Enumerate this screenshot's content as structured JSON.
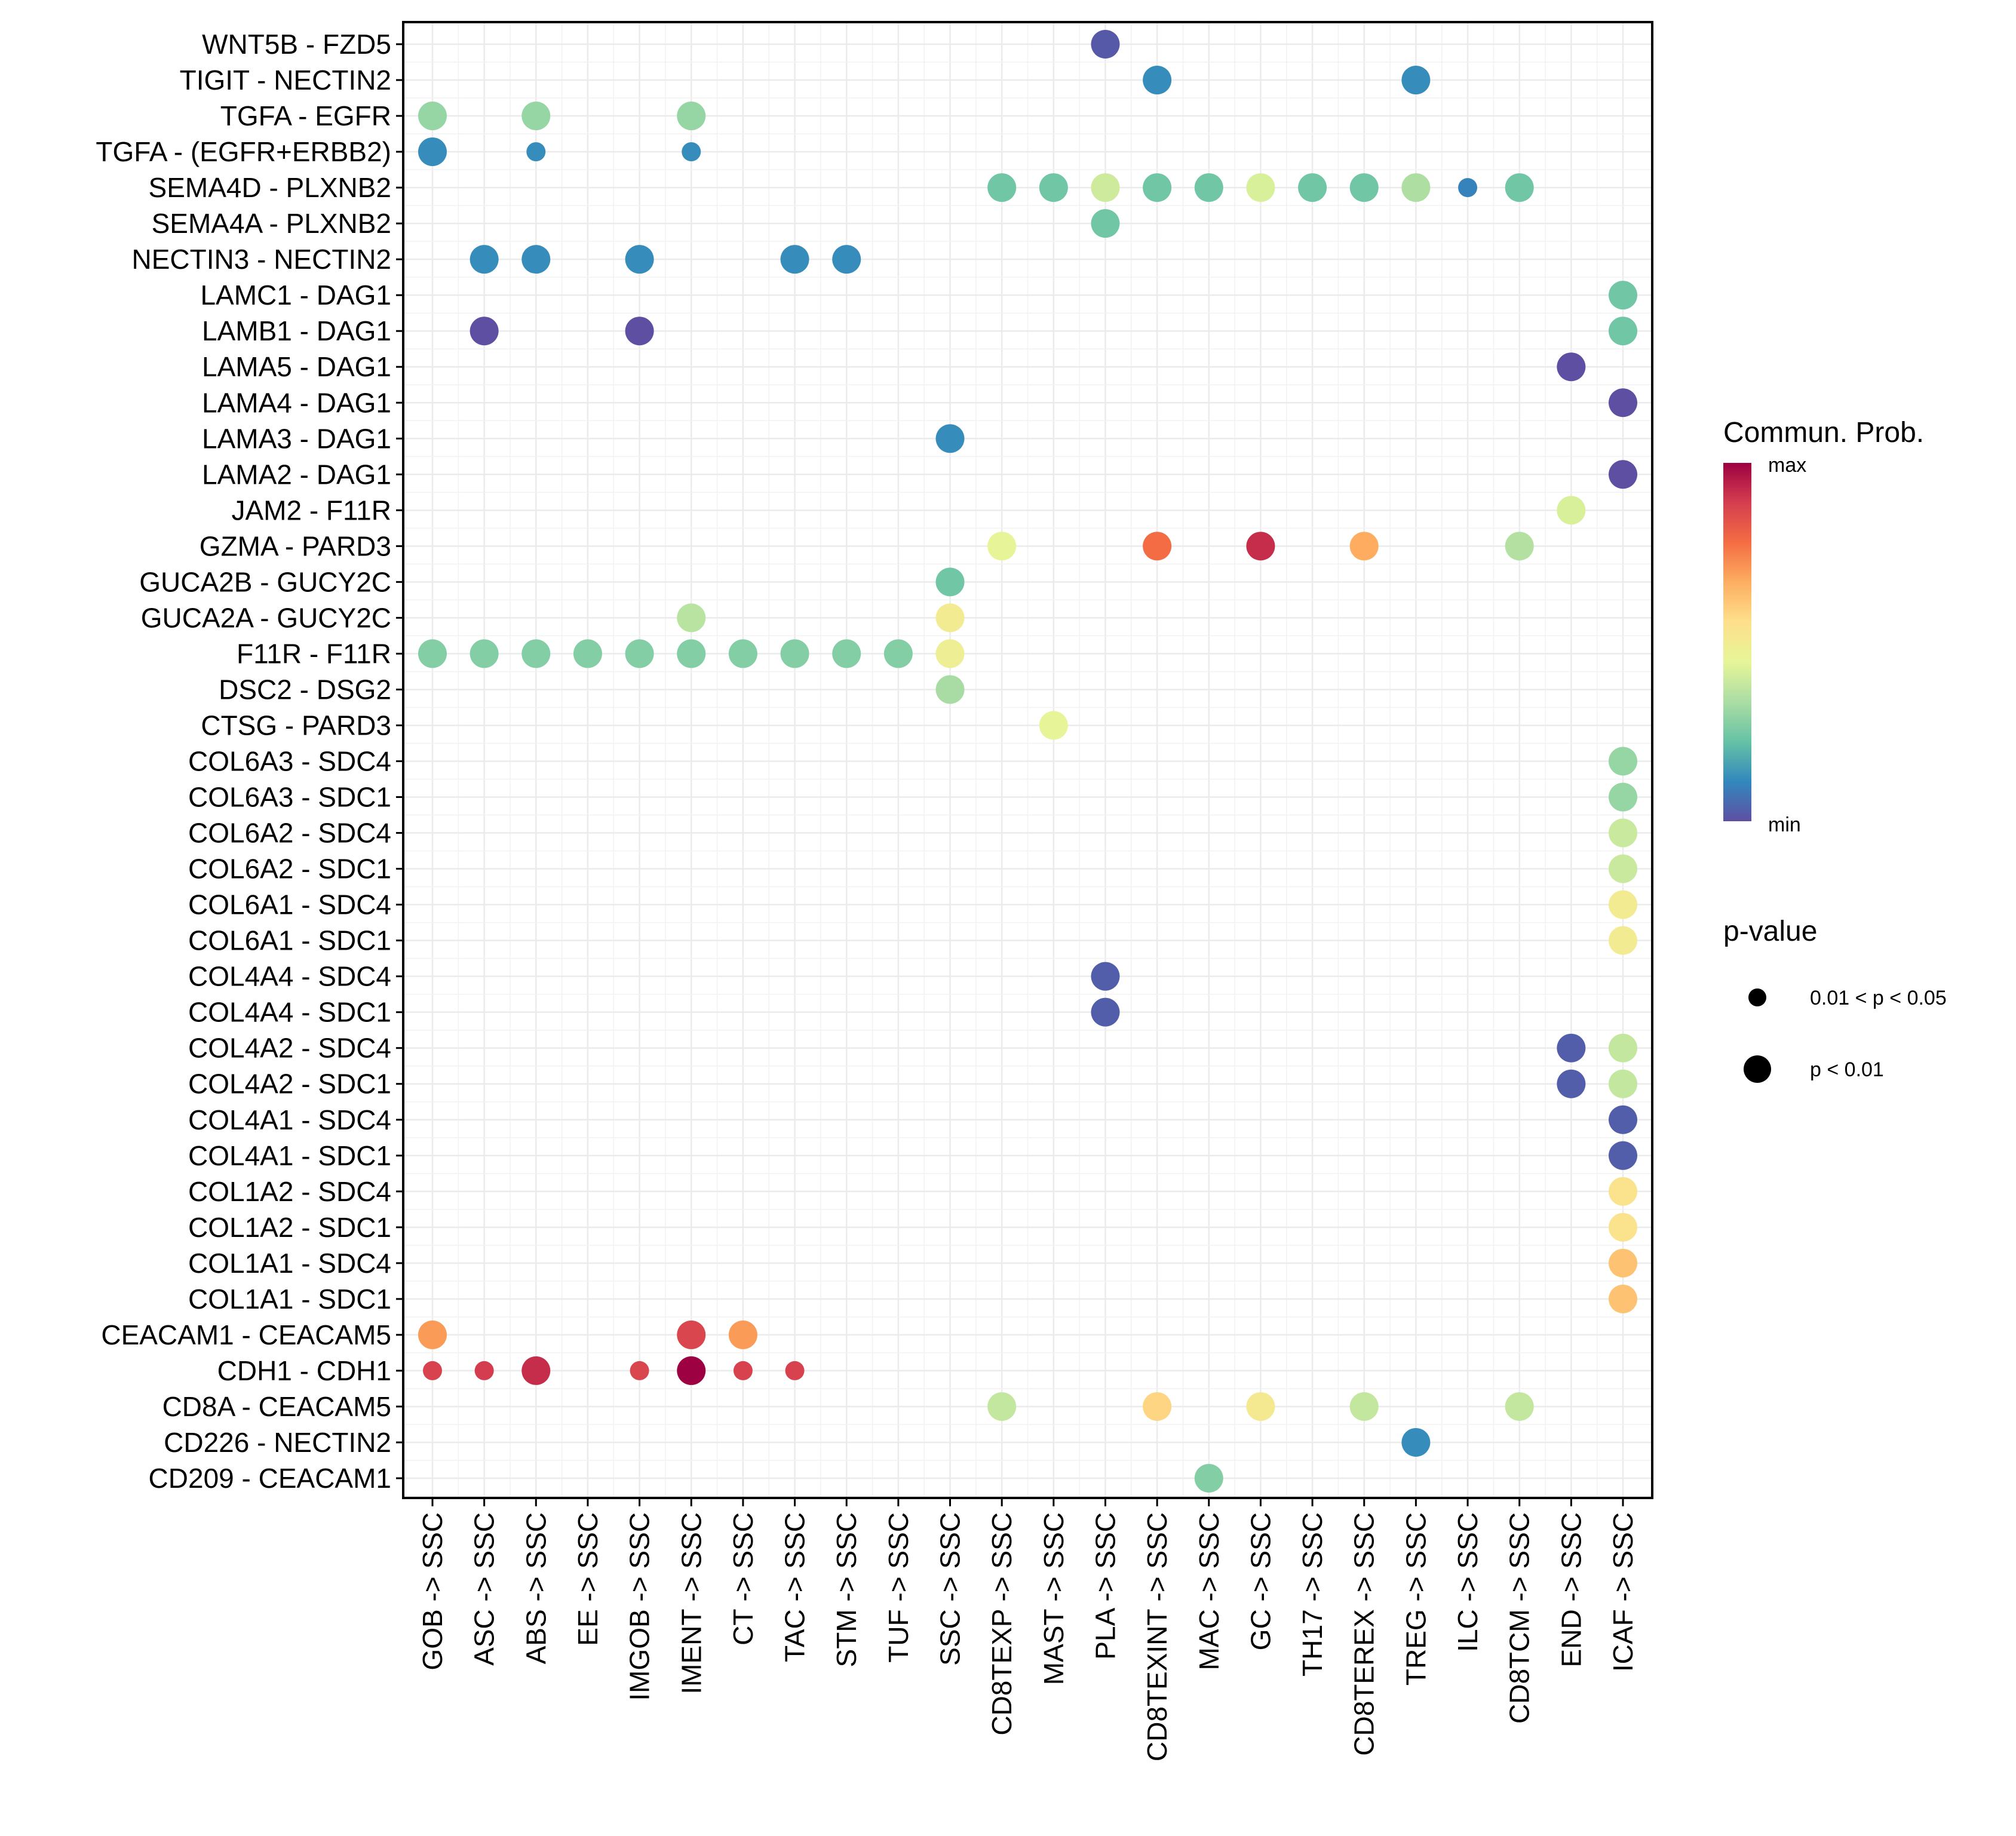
{
  "chart_data": {
    "type": "scatter",
    "subtype": "dot-plot (bubble grid)",
    "title": "",
    "xlabel": "",
    "ylabel": "",
    "grid": true,
    "x": [
      "GOB -> SSC",
      "ASC -> SSC",
      "ABS -> SSC",
      "EE -> SSC",
      "IMGOB -> SSC",
      "IMENT -> SSC",
      "CT -> SSC",
      "TAC -> SSC",
      "STM -> SSC",
      "TUF -> SSC",
      "SSC -> SSC",
      "CD8TEXP -> SSC",
      "MAST -> SSC",
      "PLA -> SSC",
      "CD8TEXINT -> SSC",
      "MAC -> SSC",
      "GC -> SSC",
      "TH17 -> SSC",
      "CD8TEREX -> SSC",
      "TREG -> SSC",
      "ILC -> SSC",
      "CD8TCM -> SSC",
      "END -> SSC",
      "ICAF -> SSC"
    ],
    "y": [
      "WNT5B - FZD5",
      "TIGIT - NECTIN2",
      "TGFA - EGFR",
      "TGFA - (EGFR+ERBB2)",
      "SEMA4D - PLXNB2",
      "SEMA4A - PLXNB2",
      "NECTIN3 - NECTIN2",
      "LAMC1 - DAG1",
      "LAMB1 - DAG1",
      "LAMA5 - DAG1",
      "LAMA4 - DAG1",
      "LAMA3 - DAG1",
      "LAMA2 - DAG1",
      "JAM2 - F11R",
      "GZMA - PARD3",
      "GUCA2B - GUCY2C",
      "GUCA2A - GUCY2C",
      "F11R - F11R",
      "DSC2 - DSG2",
      "CTSG - PARD3",
      "COL6A3 - SDC4",
      "COL6A3 - SDC1",
      "COL6A2 - SDC4",
      "COL6A2 - SDC1",
      "COL6A1 - SDC4",
      "COL6A1 - SDC1",
      "COL4A4 - SDC4",
      "COL4A4 - SDC1",
      "COL4A2 - SDC4",
      "COL4A2 - SDC1",
      "COL4A1 - SDC4",
      "COL4A1 - SDC1",
      "COL1A2 - SDC4",
      "COL1A2 - SDC1",
      "COL1A1 - SDC4",
      "COL1A1 - SDC1",
      "CEACAM1 - CEACAM5",
      "CDH1 - CDH1",
      "CD8A - CEACAM5",
      "CD226 - NECTIN2",
      "CD209 - CEACAM1"
    ],
    "color_legend": {
      "title": "Commun. Prob.",
      "max_label": "max",
      "min_label": "min",
      "palette": [
        "#5E4FA2",
        "#3288BD",
        "#66C2A5",
        "#ABDDA4",
        "#E6F598",
        "#FEE08B",
        "#FDAE61",
        "#F46D43",
        "#D53E4F",
        "#9E0142"
      ]
    },
    "size_legend": {
      "title": "p-value",
      "items": [
        {
          "label": "0.01 < p < 0.05",
          "size": "small"
        },
        {
          "label": "p < 0.01",
          "size": "large"
        }
      ]
    },
    "legend_position": "right",
    "note": "prob is the normalized communication probability (0 = min, 1 = max) estimated from dot colour; p is the p-value class shown by dot size",
    "points": [
      {
        "y": "WNT5B - FZD5",
        "x": "PLA -> SSC",
        "prob": 0.02,
        "p": "p < 0.01"
      },
      {
        "y": "TIGIT - NECTIN2",
        "x": "CD8TEXINT -> SSC",
        "prob": 0.12,
        "p": "p < 0.01"
      },
      {
        "y": "TIGIT - NECTIN2",
        "x": "TREG -> SSC",
        "prob": 0.12,
        "p": "p < 0.01"
      },
      {
        "y": "TGFA - EGFR",
        "x": "GOB -> SSC",
        "prob": 0.3,
        "p": "p < 0.01"
      },
      {
        "y": "TGFA - EGFR",
        "x": "ABS -> SSC",
        "prob": 0.3,
        "p": "p < 0.01"
      },
      {
        "y": "TGFA - EGFR",
        "x": "IMENT -> SSC",
        "prob": 0.3,
        "p": "p < 0.01"
      },
      {
        "y": "TGFA - (EGFR+ERBB2)",
        "x": "GOB -> SSC",
        "prob": 0.12,
        "p": "p < 0.01"
      },
      {
        "y": "TGFA - (EGFR+ERBB2)",
        "x": "ABS -> SSC",
        "prob": 0.12,
        "p": "0.01 < p < 0.05"
      },
      {
        "y": "TGFA - (EGFR+ERBB2)",
        "x": "IMENT -> SSC",
        "prob": 0.12,
        "p": "0.01 < p < 0.05"
      },
      {
        "y": "SEMA4D - PLXNB2",
        "x": "CD8TEXP -> SSC",
        "prob": 0.24,
        "p": "p < 0.01"
      },
      {
        "y": "SEMA4D - PLXNB2",
        "x": "MAST -> SSC",
        "prob": 0.24,
        "p": "p < 0.01"
      },
      {
        "y": "SEMA4D - PLXNB2",
        "x": "PLA -> SSC",
        "prob": 0.4,
        "p": "p < 0.01"
      },
      {
        "y": "SEMA4D - PLXNB2",
        "x": "CD8TEXINT -> SSC",
        "prob": 0.24,
        "p": "p < 0.01"
      },
      {
        "y": "SEMA4D - PLXNB2",
        "x": "MAC -> SSC",
        "prob": 0.24,
        "p": "p < 0.01"
      },
      {
        "y": "SEMA4D - PLXNB2",
        "x": "GC -> SSC",
        "prob": 0.42,
        "p": "p < 0.01"
      },
      {
        "y": "SEMA4D - PLXNB2",
        "x": "TH17 -> SSC",
        "prob": 0.24,
        "p": "p < 0.01"
      },
      {
        "y": "SEMA4D - PLXNB2",
        "x": "CD8TEREX -> SSC",
        "prob": 0.24,
        "p": "p < 0.01"
      },
      {
        "y": "SEMA4D - PLXNB2",
        "x": "TREG -> SSC",
        "prob": 0.34,
        "p": "p < 0.01"
      },
      {
        "y": "SEMA4D - PLXNB2",
        "x": "ILC -> SSC",
        "prob": 0.1,
        "p": "0.01 < p < 0.05"
      },
      {
        "y": "SEMA4D - PLXNB2",
        "x": "CD8TCM -> SSC",
        "prob": 0.24,
        "p": "p < 0.01"
      },
      {
        "y": "SEMA4A - PLXNB2",
        "x": "PLA -> SSC",
        "prob": 0.24,
        "p": "p < 0.01"
      },
      {
        "y": "NECTIN3 - NECTIN2",
        "x": "ASC -> SSC",
        "prob": 0.12,
        "p": "p < 0.01"
      },
      {
        "y": "NECTIN3 - NECTIN2",
        "x": "ABS -> SSC",
        "prob": 0.12,
        "p": "p < 0.01"
      },
      {
        "y": "NECTIN3 - NECTIN2",
        "x": "IMGOB -> SSC",
        "prob": 0.12,
        "p": "p < 0.01"
      },
      {
        "y": "NECTIN3 - NECTIN2",
        "x": "TAC -> SSC",
        "prob": 0.12,
        "p": "p < 0.01"
      },
      {
        "y": "NECTIN3 - NECTIN2",
        "x": "STM -> SSC",
        "prob": 0.12,
        "p": "p < 0.01"
      },
      {
        "y": "LAMC1 - DAG1",
        "x": "ICAF -> SSC",
        "prob": 0.24,
        "p": "p < 0.01"
      },
      {
        "y": "LAMB1 - DAG1",
        "x": "ASC -> SSC",
        "prob": 0.0,
        "p": "p < 0.01"
      },
      {
        "y": "LAMB1 - DAG1",
        "x": "IMGOB -> SSC",
        "prob": 0.0,
        "p": "p < 0.01"
      },
      {
        "y": "LAMB1 - DAG1",
        "x": "ICAF -> SSC",
        "prob": 0.24,
        "p": "p < 0.01"
      },
      {
        "y": "LAMA5 - DAG1",
        "x": "END -> SSC",
        "prob": 0.0,
        "p": "p < 0.01"
      },
      {
        "y": "LAMA4 - DAG1",
        "x": "ICAF -> SSC",
        "prob": 0.0,
        "p": "p < 0.01"
      },
      {
        "y": "LAMA3 - DAG1",
        "x": "SSC -> SSC",
        "prob": 0.12,
        "p": "p < 0.01"
      },
      {
        "y": "LAMA2 - DAG1",
        "x": "ICAF -> SSC",
        "prob": 0.0,
        "p": "p < 0.01"
      },
      {
        "y": "JAM2 - F11R",
        "x": "END -> SSC",
        "prob": 0.42,
        "p": "p < 0.01"
      },
      {
        "y": "GZMA - PARD3",
        "x": "CD8TEXP -> SSC",
        "prob": 0.45,
        "p": "p < 0.01"
      },
      {
        "y": "GZMA - PARD3",
        "x": "CD8TEXINT -> SSC",
        "prob": 0.78,
        "p": "p < 0.01"
      },
      {
        "y": "GZMA - PARD3",
        "x": "GC -> SSC",
        "prob": 0.92,
        "p": "p < 0.01"
      },
      {
        "y": "GZMA - PARD3",
        "x": "CD8TEREX -> SSC",
        "prob": 0.67,
        "p": "p < 0.01"
      },
      {
        "y": "GZMA - PARD3",
        "x": "CD8TCM -> SSC",
        "prob": 0.35,
        "p": "p < 0.01"
      },
      {
        "y": "GUCA2B - GUCY2C",
        "x": "SSC -> SSC",
        "prob": 0.24,
        "p": "p < 0.01"
      },
      {
        "y": "GUCA2A - GUCY2C",
        "x": "IMENT -> SSC",
        "prob": 0.36,
        "p": "p < 0.01"
      },
      {
        "y": "GUCA2A - GUCY2C",
        "x": "SSC -> SSC",
        "prob": 0.5,
        "p": "p < 0.01"
      },
      {
        "y": "F11R - F11R",
        "x": "GOB -> SSC",
        "prob": 0.27,
        "p": "p < 0.01"
      },
      {
        "y": "F11R - F11R",
        "x": "ASC -> SSC",
        "prob": 0.27,
        "p": "p < 0.01"
      },
      {
        "y": "F11R - F11R",
        "x": "ABS -> SSC",
        "prob": 0.27,
        "p": "p < 0.01"
      },
      {
        "y": "F11R - F11R",
        "x": "EE -> SSC",
        "prob": 0.27,
        "p": "p < 0.01"
      },
      {
        "y": "F11R - F11R",
        "x": "IMGOB -> SSC",
        "prob": 0.27,
        "p": "p < 0.01"
      },
      {
        "y": "F11R - F11R",
        "x": "IMENT -> SSC",
        "prob": 0.27,
        "p": "p < 0.01"
      },
      {
        "y": "F11R - F11R",
        "x": "CT -> SSC",
        "prob": 0.27,
        "p": "p < 0.01"
      },
      {
        "y": "F11R - F11R",
        "x": "TAC -> SSC",
        "prob": 0.27,
        "p": "p < 0.01"
      },
      {
        "y": "F11R - F11R",
        "x": "STM -> SSC",
        "prob": 0.27,
        "p": "p < 0.01"
      },
      {
        "y": "F11R - F11R",
        "x": "TUF -> SSC",
        "prob": 0.27,
        "p": "p < 0.01"
      },
      {
        "y": "F11R - F11R",
        "x": "SSC -> SSC",
        "prob": 0.48,
        "p": "p < 0.01"
      },
      {
        "y": "DSC2 - DSG2",
        "x": "SSC -> SSC",
        "prob": 0.33,
        "p": "p < 0.01"
      },
      {
        "y": "CTSG - PARD3",
        "x": "MAST -> SSC",
        "prob": 0.45,
        "p": "p < 0.01"
      },
      {
        "y": "COL6A3 - SDC4",
        "x": "ICAF -> SSC",
        "prob": 0.3,
        "p": "p < 0.01"
      },
      {
        "y": "COL6A3 - SDC1",
        "x": "ICAF -> SSC",
        "prob": 0.3,
        "p": "p < 0.01"
      },
      {
        "y": "COL6A2 - SDC4",
        "x": "ICAF -> SSC",
        "prob": 0.39,
        "p": "p < 0.01"
      },
      {
        "y": "COL6A2 - SDC1",
        "x": "ICAF -> SSC",
        "prob": 0.39,
        "p": "p < 0.01"
      },
      {
        "y": "COL6A1 - SDC4",
        "x": "ICAF -> SSC",
        "prob": 0.5,
        "p": "p < 0.01"
      },
      {
        "y": "COL6A1 - SDC1",
        "x": "ICAF -> SSC",
        "prob": 0.5,
        "p": "p < 0.01"
      },
      {
        "y": "COL4A4 - SDC4",
        "x": "PLA -> SSC",
        "prob": 0.03,
        "p": "p < 0.01"
      },
      {
        "y": "COL4A4 - SDC1",
        "x": "PLA -> SSC",
        "prob": 0.03,
        "p": "p < 0.01"
      },
      {
        "y": "COL4A2 - SDC4",
        "x": "END -> SSC",
        "prob": 0.03,
        "p": "p < 0.01"
      },
      {
        "y": "COL4A2 - SDC4",
        "x": "ICAF -> SSC",
        "prob": 0.38,
        "p": "p < 0.01"
      },
      {
        "y": "COL4A2 - SDC1",
        "x": "END -> SSC",
        "prob": 0.03,
        "p": "p < 0.01"
      },
      {
        "y": "COL4A2 - SDC1",
        "x": "ICAF -> SSC",
        "prob": 0.38,
        "p": "p < 0.01"
      },
      {
        "y": "COL4A1 - SDC4",
        "x": "ICAF -> SSC",
        "prob": 0.03,
        "p": "p < 0.01"
      },
      {
        "y": "COL4A1 - SDC1",
        "x": "ICAF -> SSC",
        "prob": 0.03,
        "p": "p < 0.01"
      },
      {
        "y": "COL1A2 - SDC4",
        "x": "ICAF -> SSC",
        "prob": 0.54,
        "p": "p < 0.01"
      },
      {
        "y": "COL1A2 - SDC1",
        "x": "ICAF -> SSC",
        "prob": 0.54,
        "p": "p < 0.01"
      },
      {
        "y": "COL1A1 - SDC4",
        "x": "ICAF -> SSC",
        "prob": 0.62,
        "p": "p < 0.01"
      },
      {
        "y": "COL1A1 - SDC1",
        "x": "ICAF -> SSC",
        "prob": 0.62,
        "p": "p < 0.01"
      },
      {
        "y": "CEACAM1 - CEACAM5",
        "x": "GOB -> SSC",
        "prob": 0.7,
        "p": "p < 0.01"
      },
      {
        "y": "CEACAM1 - CEACAM5",
        "x": "IMENT -> SSC",
        "prob": 0.87,
        "p": "p < 0.01"
      },
      {
        "y": "CEACAM1 - CEACAM5",
        "x": "CT -> SSC",
        "prob": 0.7,
        "p": "p < 0.01"
      },
      {
        "y": "CDH1 - CDH1",
        "x": "GOB -> SSC",
        "prob": 0.88,
        "p": "0.01 < p < 0.05"
      },
      {
        "y": "CDH1 - CDH1",
        "x": "ASC -> SSC",
        "prob": 0.89,
        "p": "0.01 < p < 0.05"
      },
      {
        "y": "CDH1 - CDH1",
        "x": "ABS -> SSC",
        "prob": 0.92,
        "p": "p < 0.01"
      },
      {
        "y": "CDH1 - CDH1",
        "x": "IMGOB -> SSC",
        "prob": 0.87,
        "p": "0.01 < p < 0.05"
      },
      {
        "y": "CDH1 - CDH1",
        "x": "IMENT -> SSC",
        "prob": 1.0,
        "p": "p < 0.01"
      },
      {
        "y": "CDH1 - CDH1",
        "x": "CT -> SSC",
        "prob": 0.88,
        "p": "0.01 < p < 0.05"
      },
      {
        "y": "CDH1 - CDH1",
        "x": "TAC -> SSC",
        "prob": 0.88,
        "p": "0.01 < p < 0.05"
      },
      {
        "y": "CD8A - CEACAM5",
        "x": "CD8TEXP -> SSC",
        "prob": 0.38,
        "p": "p < 0.01"
      },
      {
        "y": "CD8A - CEACAM5",
        "x": "CD8TEXINT -> SSC",
        "prob": 0.58,
        "p": "p < 0.01"
      },
      {
        "y": "CD8A - CEACAM5",
        "x": "GC -> SSC",
        "prob": 0.51,
        "p": "p < 0.01"
      },
      {
        "y": "CD8A - CEACAM5",
        "x": "CD8TEREX -> SSC",
        "prob": 0.38,
        "p": "p < 0.01"
      },
      {
        "y": "CD8A - CEACAM5",
        "x": "CD8TCM -> SSC",
        "prob": 0.38,
        "p": "p < 0.01"
      },
      {
        "y": "CD226 - NECTIN2",
        "x": "TREG -> SSC",
        "prob": 0.12,
        "p": "p < 0.01"
      },
      {
        "y": "CD209 - CEACAM1",
        "x": "MAC -> SSC",
        "prob": 0.27,
        "p": "p < 0.01"
      }
    ]
  }
}
